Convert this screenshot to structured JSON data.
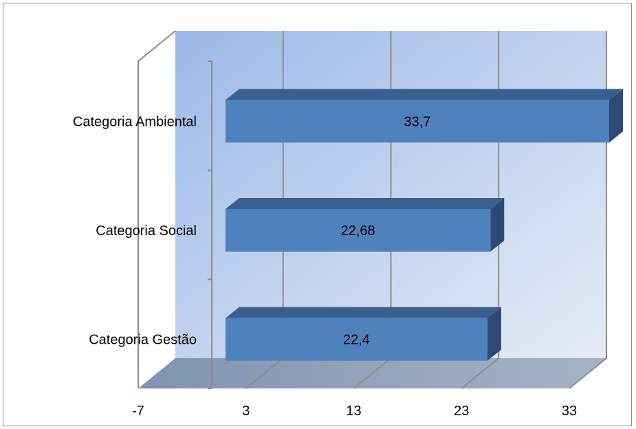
{
  "chart_data": {
    "type": "bar",
    "orientation": "horizontal",
    "three_d": true,
    "title": "",
    "xlabel": "",
    "ylabel": "",
    "categories": [
      "Categoria Gestão",
      "Categoria Social",
      "Categoria Ambiental"
    ],
    "values": [
      22.4,
      22.68,
      33.7
    ],
    "data_labels": [
      "22,4",
      "22,68",
      "33,7"
    ],
    "xlim": [
      -7,
      33
    ],
    "xticks": [
      -7,
      3,
      13,
      23,
      33
    ],
    "xtick_labels": [
      "-7",
      "3",
      "13",
      "23",
      "33"
    ],
    "grid": true,
    "legend": "none",
    "colors": {
      "bar_front": "#4f81bd",
      "bar_top": "#3a5f8f",
      "bar_side": "#2c4a73",
      "back_wall_left": "#9db9e8",
      "back_wall_right": "#dfe7f5",
      "floor": "#8a9bb3",
      "grid": "#8c8c8c"
    }
  }
}
